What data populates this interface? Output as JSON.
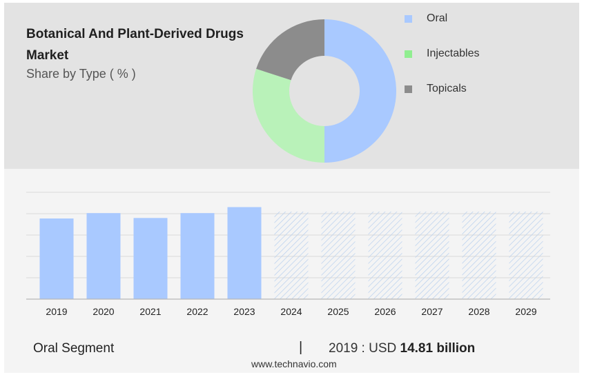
{
  "header": {
    "title": "Botanical And Plant-Derived Drugs Market",
    "subtitle": "Share by Type ( % )"
  },
  "legend": [
    {
      "label": "Oral",
      "color": "#a9c9ff"
    },
    {
      "label": "Injectables",
      "color": "#90ee90"
    },
    {
      "label": "Topicals",
      "color": "#8c8c8c"
    }
  ],
  "footer": {
    "segment_label": "Oral Segment",
    "separator": "|",
    "year_text": "2019 : USD",
    "value_text": "14.81 billion",
    "source": "www.technavio.com"
  },
  "chart_data": [
    {
      "type": "pie",
      "categories": [
        "Oral",
        "Injectables",
        "Topicals"
      ],
      "values": [
        50,
        30,
        20
      ],
      "colors": [
        "#a9c9ff",
        "#b9f2b9",
        "#8c8c8c"
      ],
      "donut": true
    },
    {
      "type": "bar",
      "categories": [
        "2019",
        "2020",
        "2021",
        "2022",
        "2023",
        "2024",
        "2025",
        "2026",
        "2027",
        "2028",
        "2029"
      ],
      "values": [
        14.81,
        15.8,
        14.9,
        15.8,
        16.9,
        null,
        null,
        null,
        null,
        null,
        null
      ],
      "forecast_categories": [
        "2024",
        "2025",
        "2026",
        "2027",
        "2028",
        "2029"
      ],
      "ylim": [
        0,
        20
      ],
      "grid": true,
      "bar_color": "#a9c9ff"
    }
  ]
}
